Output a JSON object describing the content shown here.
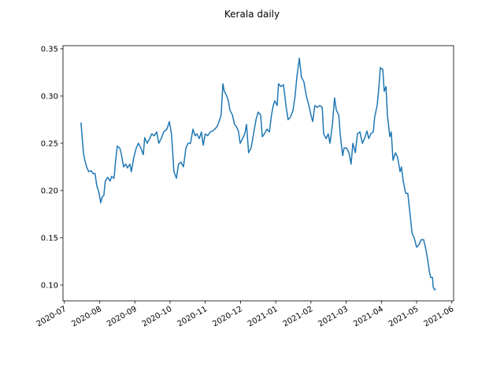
{
  "chart_data": {
    "type": "line",
    "title": "Kerala daily",
    "xticks": [
      {
        "value": 0,
        "label": "2020-07"
      },
      {
        "value": 1,
        "label": "2020-08"
      },
      {
        "value": 2,
        "label": "2020-09"
      },
      {
        "value": 3,
        "label": "2020-10"
      },
      {
        "value": 4,
        "label": "2020-11"
      },
      {
        "value": 5,
        "label": "2020-12"
      },
      {
        "value": 6,
        "label": "2021-01"
      },
      {
        "value": 7,
        "label": "2021-02"
      },
      {
        "value": 8,
        "label": "2021-03"
      },
      {
        "value": 9,
        "label": "2021-04"
      },
      {
        "value": 10,
        "label": "2021-05"
      },
      {
        "value": 11,
        "label": "2021-06"
      }
    ],
    "xlim": [
      -0.04,
      11.05
    ],
    "ylim": [
      0.0833,
      0.3533
    ],
    "yticks": [
      {
        "value": 0.1,
        "label": "0.10"
      },
      0.15,
      {
        "value": 0.2,
        "label": "0.20"
      },
      0.25,
      {
        "value": 0.3,
        "label": "0.30"
      },
      0.35
    ],
    "x": [
      0.47,
      0.54,
      0.58,
      0.63,
      0.69,
      0.76,
      0.81,
      0.87,
      0.92,
      0.98,
      1.03,
      1.07,
      1.12,
      1.16,
      1.23,
      1.3,
      1.34,
      1.41,
      1.45,
      1.5,
      1.57,
      1.61,
      1.68,
      1.74,
      1.79,
      1.86,
      1.9,
      1.97,
      2.04,
      2.1,
      2.17,
      2.24,
      2.28,
      2.35,
      2.42,
      2.48,
      2.55,
      2.62,
      2.68,
      2.75,
      2.82,
      2.91,
      2.98,
      3.04,
      3.11,
      3.18,
      3.24,
      3.31,
      3.38,
      3.45,
      3.51,
      3.58,
      3.65,
      3.71,
      3.76,
      3.83,
      3.89,
      3.94,
      4.0,
      4.07,
      4.14,
      4.21,
      4.27,
      4.34,
      4.41,
      4.45,
      4.5,
      4.54,
      4.61,
      4.65,
      4.7,
      4.77,
      4.83,
      4.88,
      4.94,
      4.99,
      5.06,
      5.12,
      5.17,
      5.23,
      5.3,
      5.37,
      5.44,
      5.5,
      5.57,
      5.62,
      5.68,
      5.75,
      5.82,
      5.88,
      5.93,
      5.97,
      6.04,
      6.08,
      6.15,
      6.22,
      6.29,
      6.35,
      6.42,
      6.49,
      6.55,
      6.6,
      6.67,
      6.73,
      6.8,
      6.87,
      6.94,
      7.0,
      7.05,
      7.11,
      7.18,
      7.25,
      7.32,
      7.36,
      7.43,
      7.49,
      7.54,
      7.61,
      7.67,
      7.72,
      7.79,
      7.83,
      7.9,
      7.94,
      8.01,
      8.08,
      8.14,
      8.19,
      8.26,
      8.32,
      8.39,
      8.46,
      8.52,
      8.59,
      8.64,
      8.7,
      8.77,
      8.81,
      8.88,
      8.93,
      8.97,
      9.04,
      9.08,
      9.13,
      9.17,
      9.24,
      9.28,
      9.33,
      9.4,
      9.46,
      9.53,
      9.57,
      9.62,
      9.69,
      9.75,
      9.8,
      9.87,
      9.93,
      10.0,
      10.07,
      10.13,
      10.2,
      10.25,
      10.31,
      10.36,
      10.4,
      10.45,
      10.47,
      10.51,
      10.54
    ],
    "series": [
      {
        "color": "#1f77b4",
        "values": [
          0.272,
          0.24,
          0.232,
          0.225,
          0.22,
          0.221,
          0.218,
          0.218,
          0.205,
          0.198,
          0.187,
          0.193,
          0.195,
          0.21,
          0.214,
          0.21,
          0.215,
          0.213,
          0.23,
          0.247,
          0.245,
          0.24,
          0.225,
          0.228,
          0.224,
          0.228,
          0.22,
          0.235,
          0.245,
          0.25,
          0.245,
          0.238,
          0.256,
          0.25,
          0.255,
          0.26,
          0.258,
          0.262,
          0.25,
          0.255,
          0.262,
          0.265,
          0.273,
          0.26,
          0.22,
          0.213,
          0.228,
          0.23,
          0.225,
          0.245,
          0.25,
          0.25,
          0.265,
          0.258,
          0.26,
          0.255,
          0.262,
          0.248,
          0.26,
          0.258,
          0.262,
          0.263,
          0.265,
          0.268,
          0.275,
          0.28,
          0.313,
          0.305,
          0.3,
          0.296,
          0.285,
          0.28,
          0.27,
          0.268,
          0.263,
          0.25,
          0.255,
          0.26,
          0.27,
          0.24,
          0.245,
          0.26,
          0.275,
          0.283,
          0.28,
          0.257,
          0.26,
          0.265,
          0.262,
          0.28,
          0.29,
          0.295,
          0.29,
          0.313,
          0.31,
          0.312,
          0.29,
          0.275,
          0.278,
          0.285,
          0.3,
          0.32,
          0.34,
          0.32,
          0.315,
          0.3,
          0.29,
          0.28,
          0.273,
          0.29,
          0.288,
          0.29,
          0.288,
          0.26,
          0.255,
          0.26,
          0.25,
          0.27,
          0.298,
          0.285,
          0.28,
          0.26,
          0.237,
          0.245,
          0.245,
          0.24,
          0.228,
          0.25,
          0.24,
          0.26,
          0.262,
          0.25,
          0.255,
          0.263,
          0.255,
          0.26,
          0.262,
          0.278,
          0.29,
          0.31,
          0.33,
          0.328,
          0.305,
          0.31,
          0.28,
          0.257,
          0.262,
          0.232,
          0.24,
          0.235,
          0.22,
          0.225,
          0.21,
          0.197,
          0.197,
          0.18,
          0.155,
          0.15,
          0.14,
          0.143,
          0.148,
          0.148,
          0.14,
          0.128,
          0.115,
          0.108,
          0.108,
          0.098,
          0.095,
          0.096
        ]
      }
    ]
  }
}
